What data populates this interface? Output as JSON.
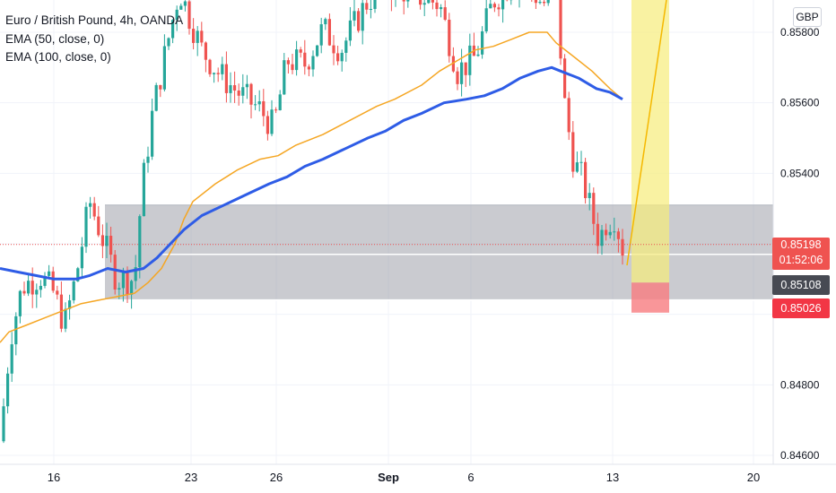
{
  "header": {
    "title": "Euro / British Pound, 4h, OANDA",
    "indicators": [
      "EMA (50, close, 0)",
      "EMA (100, close, 0)"
    ],
    "currency": "GBP"
  },
  "price_tags": {
    "last_price": "0.85198",
    "countdown": "01:52:06",
    "zone_price": "0.85108",
    "stop_price": "0.85026"
  },
  "colors": {
    "up": "#26a69a",
    "down": "#ef5350",
    "ema50": "#f5a623",
    "ema100": "#2e5ce6",
    "zone": "#9598a1",
    "target": "#f7ec7a",
    "stop": "#f77c80"
  },
  "chart_data": {
    "type": "candlestick",
    "title": "Euro / British Pound, 4h, OANDA",
    "y_axis": {
      "ticks": [
        "0.84600",
        "0.84800",
        "0.85000",
        "0.85200",
        "0.85400",
        "0.85600",
        "0.85800"
      ],
      "range": [
        0.846,
        0.8592
      ]
    },
    "x_axis": {
      "ticks": [
        "16",
        "23",
        "26",
        "Sep",
        "6",
        "13",
        "20"
      ]
    },
    "series": [
      {
        "name": "EMA (50, close, 0)",
        "color": "#f5a623",
        "points": [
          [
            0,
            0.8492
          ],
          [
            10,
            0.8495
          ],
          [
            30,
            0.8497
          ],
          [
            50,
            0.8499
          ],
          [
            70,
            0.8501
          ],
          [
            90,
            0.8503
          ],
          [
            110,
            0.8504
          ],
          [
            130,
            0.8505
          ],
          [
            150,
            0.8506
          ],
          [
            165,
            0.8509
          ],
          [
            180,
            0.8513
          ],
          [
            195,
            0.852
          ],
          [
            205,
            0.8527
          ],
          [
            215,
            0.8532
          ],
          [
            240,
            0.8537
          ],
          [
            265,
            0.8541
          ],
          [
            290,
            0.8544
          ],
          [
            310,
            0.8545
          ],
          [
            330,
            0.8548
          ],
          [
            360,
            0.8551
          ],
          [
            390,
            0.8555
          ],
          [
            420,
            0.8559
          ],
          [
            440,
            0.8561
          ],
          [
            470,
            0.8565
          ],
          [
            490,
            0.8569
          ],
          [
            510,
            0.8572
          ],
          [
            530,
            0.8575
          ],
          [
            550,
            0.8576
          ],
          [
            570,
            0.8578
          ],
          [
            590,
            0.858
          ],
          [
            610,
            0.858
          ],
          [
            620,
            0.8577
          ],
          [
            640,
            0.8573
          ],
          [
            660,
            0.8569
          ],
          [
            680,
            0.8564
          ],
          [
            694,
            0.8561
          ]
        ]
      },
      {
        "name": "EMA (100, close, 0)",
        "color": "#2e5ce6",
        "points": [
          [
            0,
            0.8513
          ],
          [
            20,
            0.8512
          ],
          [
            40,
            0.8511
          ],
          [
            60,
            0.851
          ],
          [
            85,
            0.851
          ],
          [
            100,
            0.8511
          ],
          [
            120,
            0.8513
          ],
          [
            140,
            0.8512
          ],
          [
            160,
            0.8513
          ],
          [
            175,
            0.8516
          ],
          [
            190,
            0.852
          ],
          [
            205,
            0.8524
          ],
          [
            225,
            0.8528
          ],
          [
            250,
            0.8531
          ],
          [
            275,
            0.8534
          ],
          [
            300,
            0.8537
          ],
          [
            320,
            0.8539
          ],
          [
            340,
            0.8542
          ],
          [
            360,
            0.8544
          ],
          [
            385,
            0.8547
          ],
          [
            410,
            0.855
          ],
          [
            430,
            0.8552
          ],
          [
            450,
            0.8555
          ],
          [
            470,
            0.8557
          ],
          [
            495,
            0.856
          ],
          [
            520,
            0.8561
          ],
          [
            540,
            0.8562
          ],
          [
            560,
            0.8564
          ],
          [
            580,
            0.8567
          ],
          [
            600,
            0.8569
          ],
          [
            615,
            0.857
          ],
          [
            625,
            0.8569
          ],
          [
            645,
            0.8567
          ],
          [
            665,
            0.8564
          ],
          [
            680,
            0.8563
          ],
          [
            694,
            0.8561
          ]
        ]
      }
    ],
    "zones": [
      {
        "kind": "demand_zone",
        "from": 0.8504,
        "to": 0.8531
      },
      {
        "kind": "target",
        "from": 0.8509,
        "to": 0.8592
      },
      {
        "kind": "stop",
        "from": 0.8502,
        "to": 0.8509
      }
    ],
    "last_price": 0.85198
  }
}
